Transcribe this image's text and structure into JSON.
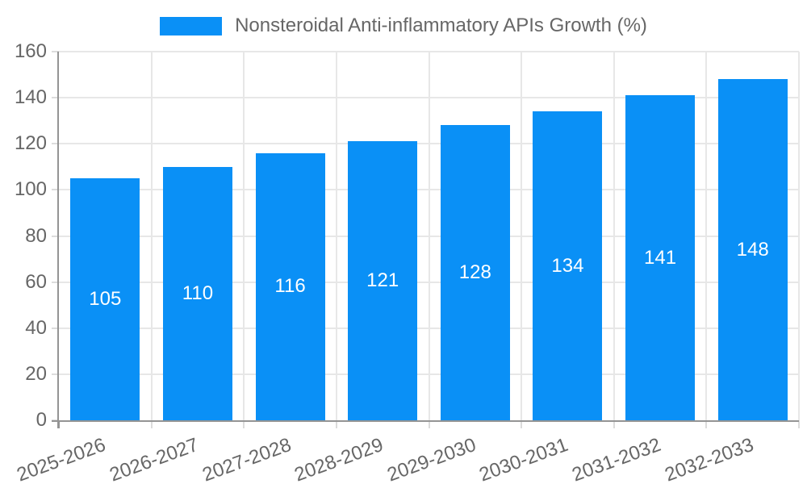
{
  "legend": {
    "label": "Nonsteroidal Anti-inflammatory APIs Growth (%)"
  },
  "chart_data": {
    "type": "bar",
    "title": "",
    "categories": [
      "2025-2026",
      "2026-2027",
      "2027-2028",
      "2028-2029",
      "2029-2030",
      "2030-2031",
      "2031-2032",
      "2032-2033"
    ],
    "series": [
      {
        "name": "Nonsteroidal Anti-inflammatory APIs Growth (%)",
        "values": [
          105,
          110,
          116,
          121,
          128,
          134,
          141,
          148
        ]
      }
    ],
    "value_labels_shown": true,
    "value_label_position": "inside-center",
    "xlabel": "",
    "ylabel": "",
    "ylim": [
      0,
      160
    ],
    "yticks": [
      0,
      20,
      40,
      60,
      80,
      100,
      120,
      140,
      160
    ],
    "grid": true,
    "x_tick_rotation_deg": -20,
    "legend_position": "top-center",
    "colors": {
      "bar": "#0a90f6",
      "value_label": "#ffffff",
      "axis_text": "#666666",
      "grid_line": "#e7e7e7",
      "tick_mark": "#dcdcdc",
      "axis_line": "#949494",
      "background": "#ffffff"
    }
  }
}
